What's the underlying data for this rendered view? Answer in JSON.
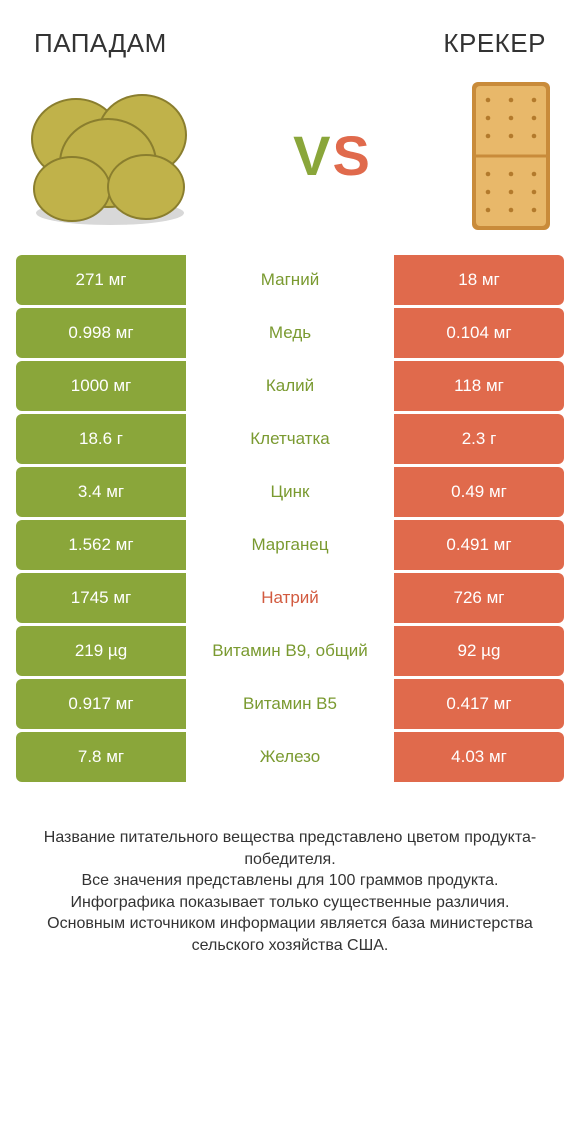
{
  "colors": {
    "left_bg": "#8aa63a",
    "right_bg": "#e06a4c",
    "left_text": "#7a9a30",
    "right_text": "#d25a3f",
    "row_text_white": "#ffffff",
    "page_bg": "#ffffff",
    "body_text": "#333333"
  },
  "header": {
    "left_title": "ПАПАДАМ",
    "right_title": "КРЕКЕР",
    "vs_v": "V",
    "vs_s": "S"
  },
  "illustrations": {
    "papadam": {
      "disc_fill": "#c0b24a",
      "disc_stroke": "#8a7e2e",
      "shadow": "#d8d8d8"
    },
    "cracker": {
      "fill": "#e8b86a",
      "edge": "#c98b3a",
      "hole": "#b37a2c"
    }
  },
  "rows": [
    {
      "left": "271 мг",
      "mid": "Магний",
      "right": "18 мг",
      "winner": "left"
    },
    {
      "left": "0.998 мг",
      "mid": "Медь",
      "right": "0.104 мг",
      "winner": "left"
    },
    {
      "left": "1000 мг",
      "mid": "Калий",
      "right": "118 мг",
      "winner": "left"
    },
    {
      "left": "18.6 г",
      "mid": "Клетчатка",
      "right": "2.3 г",
      "winner": "left"
    },
    {
      "left": "3.4 мг",
      "mid": "Цинк",
      "right": "0.49 мг",
      "winner": "left"
    },
    {
      "left": "1.562 мг",
      "mid": "Марганец",
      "right": "0.491 мг",
      "winner": "left"
    },
    {
      "left": "1745 мг",
      "mid": "Натрий",
      "right": "726 мг",
      "winner": "right"
    },
    {
      "left": "219 µg",
      "mid": "Витамин B9, общий",
      "right": "92 µg",
      "winner": "left"
    },
    {
      "left": "0.917 мг",
      "mid": "Витамин B5",
      "right": "0.417 мг",
      "winner": "left"
    },
    {
      "left": "7.8 мг",
      "mid": "Железо",
      "right": "4.03 мг",
      "winner": "left"
    }
  ],
  "footer_lines": [
    "Название питательного вещества представлено цветом продукта-победителя.",
    "Все значения представлены для 100 граммов продукта.",
    "Инфографика показывает только существенные различия.",
    "Основным источником информации является база министерства сельского хозяйства США."
  ]
}
